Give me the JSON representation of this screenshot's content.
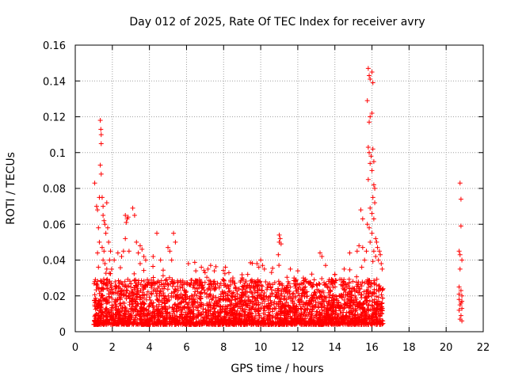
{
  "chart_data": {
    "type": "scatter",
    "title": "Day 012 of 2025, Rate Of TEC Index for receiver avry",
    "xlabel": "GPS time / hours",
    "ylabel": "ROTI / TECUs",
    "xlim": [
      0,
      22
    ],
    "ylim": [
      0,
      0.16
    ],
    "xticks": [
      0,
      2,
      4,
      6,
      8,
      10,
      12,
      14,
      16,
      18,
      20,
      22
    ],
    "xtick_labels": [
      "0",
      "2",
      "4",
      "6",
      "8",
      "10",
      "12",
      "14",
      "16",
      "18",
      "20",
      "22"
    ],
    "yticks": [
      0,
      0.02,
      0.04,
      0.06,
      0.08,
      0.1,
      0.12,
      0.14,
      0.16
    ],
    "ytick_labels": [
      "0",
      "0.02",
      "0.04",
      "0.06",
      "0.08",
      "0.1",
      "0.12",
      "0.14",
      "0.16"
    ],
    "grid": true,
    "marker": "+",
    "marker_color": "#ff0000",
    "series": [
      {
        "name": "ROTI",
        "segments": [
          {
            "x_start": 1.0,
            "x_end": 16.6,
            "count": 3200,
            "base_min": 0.004,
            "base_max": 0.026
          }
        ],
        "points": [
          [
            1.05,
            0.083
          ],
          [
            1.15,
            0.07
          ],
          [
            1.2,
            0.068
          ],
          [
            1.25,
            0.058
          ],
          [
            1.3,
            0.075
          ],
          [
            1.3,
            0.05
          ],
          [
            1.35,
            0.118
          ],
          [
            1.38,
            0.113
          ],
          [
            1.4,
            0.11
          ],
          [
            1.4,
            0.105
          ],
          [
            1.35,
            0.093
          ],
          [
            1.4,
            0.088
          ],
          [
            1.45,
            0.075
          ],
          [
            1.5,
            0.07
          ],
          [
            1.5,
            0.065
          ],
          [
            1.55,
            0.062
          ],
          [
            1.6,
            0.06
          ],
          [
            1.65,
            0.055
          ],
          [
            1.7,
            0.072
          ],
          [
            1.75,
            0.058
          ],
          [
            1.8,
            0.05
          ],
          [
            1.9,
            0.045
          ],
          [
            1.45,
            0.047
          ],
          [
            1.5,
            0.04
          ],
          [
            1.55,
            0.045
          ],
          [
            1.6,
            0.038
          ],
          [
            1.2,
            0.044
          ],
          [
            1.25,
            0.036
          ],
          [
            1.7,
            0.035
          ],
          [
            1.85,
            0.04
          ],
          [
            2.1,
            0.04
          ],
          [
            2.3,
            0.044
          ],
          [
            2.5,
            0.042
          ],
          [
            2.6,
            0.045
          ],
          [
            2.7,
            0.052
          ],
          [
            2.7,
            0.065
          ],
          [
            2.8,
            0.063
          ],
          [
            2.75,
            0.061
          ],
          [
            2.85,
            0.064
          ],
          [
            2.9,
            0.045
          ],
          [
            3.1,
            0.069
          ],
          [
            3.2,
            0.065
          ],
          [
            3.3,
            0.05
          ],
          [
            3.4,
            0.044
          ],
          [
            3.5,
            0.048
          ],
          [
            3.6,
            0.046
          ],
          [
            3.7,
            0.042
          ],
          [
            3.5,
            0.038
          ],
          [
            3.8,
            0.04
          ],
          [
            4.2,
            0.042
          ],
          [
            4.4,
            0.055
          ],
          [
            4.6,
            0.04
          ],
          [
            5.0,
            0.047
          ],
          [
            5.1,
            0.045
          ],
          [
            5.3,
            0.055
          ],
          [
            5.4,
            0.05
          ],
          [
            5.2,
            0.04
          ],
          [
            6.1,
            0.038
          ],
          [
            6.5,
            0.034
          ],
          [
            6.8,
            0.036
          ],
          [
            7.0,
            0.033
          ],
          [
            7.3,
            0.037
          ],
          [
            7.5,
            0.034
          ],
          [
            8.1,
            0.036
          ],
          [
            8.5,
            0.03
          ],
          [
            9.0,
            0.03
          ],
          [
            9.3,
            0.032
          ],
          [
            9.8,
            0.038
          ],
          [
            9.9,
            0.036
          ],
          [
            10.0,
            0.04
          ],
          [
            10.1,
            0.037
          ],
          [
            10.2,
            0.035
          ],
          [
            11.0,
            0.054
          ],
          [
            11.05,
            0.052
          ],
          [
            11.0,
            0.05
          ],
          [
            11.1,
            0.049
          ],
          [
            10.95,
            0.043
          ],
          [
            11.6,
            0.035
          ],
          [
            11.8,
            0.03
          ],
          [
            12.0,
            0.034
          ],
          [
            12.3,
            0.03
          ],
          [
            13.2,
            0.044
          ],
          [
            13.3,
            0.042
          ],
          [
            13.5,
            0.037
          ],
          [
            14.0,
            0.032
          ],
          [
            14.5,
            0.035
          ],
          [
            14.8,
            0.044
          ],
          [
            15.2,
            0.045
          ],
          [
            15.3,
            0.048
          ],
          [
            15.4,
            0.068
          ],
          [
            15.5,
            0.063
          ],
          [
            15.5,
            0.047
          ],
          [
            15.6,
            0.04
          ],
          [
            15.45,
            0.036
          ],
          [
            15.8,
            0.147
          ],
          [
            15.85,
            0.143
          ],
          [
            15.9,
            0.141
          ],
          [
            16.0,
            0.145
          ],
          [
            16.05,
            0.139
          ],
          [
            15.75,
            0.129
          ],
          [
            15.9,
            0.12
          ],
          [
            15.85,
            0.117
          ],
          [
            16.0,
            0.122
          ],
          [
            15.8,
            0.103
          ],
          [
            15.85,
            0.1
          ],
          [
            15.95,
            0.098
          ],
          [
            15.9,
            0.094
          ],
          [
            16.0,
            0.09
          ],
          [
            16.05,
            0.102
          ],
          [
            16.1,
            0.095
          ],
          [
            15.8,
            0.085
          ],
          [
            16.1,
            0.082
          ],
          [
            16.15,
            0.08
          ],
          [
            16.05,
            0.075
          ],
          [
            16.15,
            0.072
          ],
          [
            15.9,
            0.069
          ],
          [
            16.0,
            0.066
          ],
          [
            16.1,
            0.063
          ],
          [
            15.75,
            0.06
          ],
          [
            15.85,
            0.058
          ],
          [
            16.0,
            0.055
          ],
          [
            16.2,
            0.052
          ],
          [
            15.9,
            0.05
          ],
          [
            16.25,
            0.05
          ],
          [
            16.3,
            0.047
          ],
          [
            16.4,
            0.045
          ],
          [
            16.45,
            0.043
          ],
          [
            16.35,
            0.04
          ],
          [
            16.5,
            0.038
          ],
          [
            16.55,
            0.035
          ],
          [
            16.2,
            0.042
          ],
          [
            16.1,
            0.045
          ],
          [
            15.7,
            0.045
          ],
          [
            20.75,
            0.083
          ],
          [
            20.8,
            0.074
          ],
          [
            20.8,
            0.059
          ],
          [
            20.7,
            0.045
          ],
          [
            20.75,
            0.043
          ],
          [
            20.85,
            0.04
          ],
          [
            20.75,
            0.035
          ],
          [
            20.7,
            0.025
          ],
          [
            20.8,
            0.023
          ],
          [
            20.85,
            0.02
          ],
          [
            20.7,
            0.018
          ],
          [
            20.8,
            0.016
          ],
          [
            20.75,
            0.015
          ],
          [
            20.85,
            0.013
          ],
          [
            20.7,
            0.012
          ],
          [
            20.8,
            0.009
          ],
          [
            20.75,
            0.007
          ],
          [
            20.85,
            0.006
          ],
          [
            20.7,
            0.021
          ],
          [
            20.85,
            0.017
          ]
        ]
      }
    ]
  }
}
